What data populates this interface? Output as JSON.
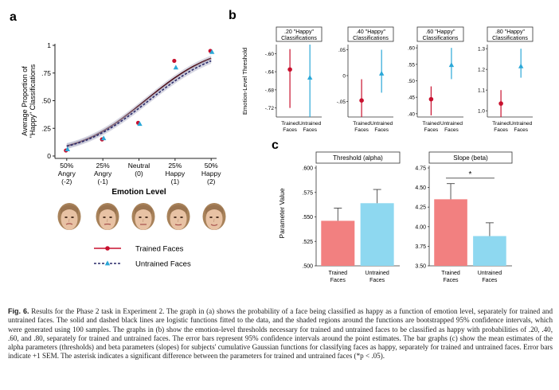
{
  "panels": {
    "a": "a",
    "b": "b",
    "c": "c"
  },
  "colors": {
    "trained": "#c8102e",
    "untrained": "#2ba8d8",
    "trained_bar": "#f28080",
    "untrained_bar": "#8ed8f0",
    "band": "#b8b8cc"
  },
  "chart_data": [
    {
      "id": "a",
      "type": "line",
      "ylabel": "Average Proportion of \"Happy\" Classifications",
      "xlabel": "Emotion Level",
      "x": [
        -2,
        -1,
        0,
        1,
        2
      ],
      "x_tick_lines": [
        [
          "50%",
          "Angry",
          "(-2)"
        ],
        [
          "25%",
          "Angry",
          "(-1)"
        ],
        [
          "Neutral",
          "(0)",
          ""
        ],
        [
          "25%",
          "Happy",
          "(1)"
        ],
        [
          "50%",
          "Happy",
          "(2)"
        ]
      ],
      "ylim": [
        0,
        1
      ],
      "y_ticks": [
        0,
        0.25,
        0.5,
        0.75,
        1
      ],
      "y_tick_labels": [
        "0",
        ".25",
        ".50",
        ".75",
        "1"
      ],
      "series": [
        {
          "name": "Trained Faces",
          "marker": "circle",
          "line": "solid",
          "color": "#c8102e",
          "values": [
            0.05,
            0.15,
            0.3,
            0.86,
            0.95
          ],
          "curve": {
            "mu": 0.2,
            "sigma": 1.45,
            "floor": 0.03,
            "ceil": 0.985
          }
        },
        {
          "name": "Untrained Faces",
          "marker": "triangle",
          "line": "dashed",
          "color": "#2ba8d8",
          "values": [
            0.06,
            0.16,
            0.29,
            0.8,
            0.94
          ],
          "curve": {
            "mu": 0.28,
            "sigma": 1.48,
            "floor": 0.03,
            "ceil": 0.975
          }
        }
      ],
      "legend": "bottom"
    },
    {
      "id": "b",
      "type": "scatter",
      "ylabel": "Emotion-Level Threshold",
      "x_categories": [
        [
          "Trained",
          "Faces"
        ],
        [
          "Untrained",
          "Faces"
        ]
      ],
      "subplots": [
        {
          "title": [
            ".20 \"Happy\"",
            "Classifications"
          ],
          "ylim": [
            -0.74,
            -0.58
          ],
          "y_ticks": [
            -0.6,
            -0.64,
            -0.68,
            -0.72
          ],
          "y_tick_labels": [
            "-.60",
            "-.64",
            "-.68",
            "-.72"
          ],
          "trained": {
            "value": -0.635,
            "lo": -0.72,
            "hi": -0.59
          },
          "untrained": {
            "value": -0.653,
            "lo": -0.74,
            "hi": -0.58
          }
        },
        {
          "title": [
            ".40 \"Happy\"",
            "Classifications"
          ],
          "ylim": [
            -0.08,
            0.06
          ],
          "y_ticks": [
            0.05,
            0,
            -0.05
          ],
          "y_tick_labels": [
            ".05",
            "0",
            "-.05"
          ],
          "trained": {
            "value": -0.048,
            "lo": -0.08,
            "hi": -0.007
          },
          "untrained": {
            "value": 0.004,
            "lo": -0.033,
            "hi": 0.05
          }
        },
        {
          "title": [
            ".60 \"Happy\"",
            "Classifications"
          ],
          "ylim": [
            0.39,
            0.61
          ],
          "y_ticks": [
            0.6,
            0.55,
            0.5,
            0.45,
            0.4
          ],
          "y_tick_labels": [
            ".60",
            ".55",
            ".50",
            ".45",
            ".40"
          ],
          "trained": {
            "value": 0.444,
            "lo": 0.395,
            "hi": 0.483
          },
          "untrained": {
            "value": 0.548,
            "lo": 0.505,
            "hi": 0.6
          }
        },
        {
          "title": [
            ".80 \"Happy\"",
            "Classifications"
          ],
          "ylim": [
            0.97,
            1.32
          ],
          "y_ticks": [
            1.3,
            1.2,
            1.1,
            1.0
          ],
          "y_tick_labels": [
            "1.3",
            "1.2",
            "1.1",
            "1.0"
          ],
          "trained": {
            "value": 1.035,
            "lo": 0.97,
            "hi": 1.1
          },
          "untrained": {
            "value": 1.215,
            "lo": 1.16,
            "hi": 1.3
          }
        }
      ]
    },
    {
      "id": "c",
      "type": "bar",
      "ylabel": "Parameter Value",
      "categories": [
        [
          "Trained",
          "Faces"
        ],
        [
          "Untrained",
          "Faces"
        ]
      ],
      "subplots": [
        {
          "title": "Threshold (alpha)",
          "ylim": [
            0.5,
            0.6
          ],
          "y_ticks": [
            0.5,
            0.525,
            0.55,
            0.575,
            0.6
          ],
          "y_tick_labels": [
            ".500",
            ".525",
            ".550",
            ".575",
            ".600"
          ],
          "values": [
            0.546,
            0.564
          ],
          "errors": [
            0.013,
            0.014
          ]
        },
        {
          "title": "Slope (beta)",
          "ylim": [
            3.5,
            4.75
          ],
          "y_ticks": [
            3.5,
            3.75,
            4.0,
            4.25,
            4.5,
            4.75
          ],
          "y_tick_labels": [
            "3.50",
            "3.75",
            "4.00",
            "4.25",
            "4.50",
            "4.75"
          ],
          "values": [
            4.35,
            3.88
          ],
          "errors": [
            0.2,
            0.17
          ],
          "significance": "*"
        }
      ]
    }
  ],
  "caption": {
    "label": "Fig. 6.",
    "text": "Results for the Phase 2 task in Experiment 2. The graph in (a) shows the probability of a face being classified as happy as a function of emotion level, separately for trained and untrained faces. The solid and dashed black lines are logistic functions fitted to the data, and the shaded regions around the functions are bootstrapped 95% confidence intervals, which were generated using 100 samples. The graphs in (b) show the emotion-level thresholds necessary for trained and untrained faces to be classified as happy with probabilities of .20, .40, .60, and .80, separately for trained and untrained faces. The error bars represent 95% confidence intervals around the point estimates. The bar graphs (c) show the mean estimates of the alpha parameters (thresholds) and beta parameters (slopes) for subjects' cumulative Gaussian functions for classifying faces as happy, separately for trained and untrained faces. Error bars indicate +1 SEM. The asterisk indicates a significant difference between the parameters for trained and untrained faces (*p < .05)."
  }
}
